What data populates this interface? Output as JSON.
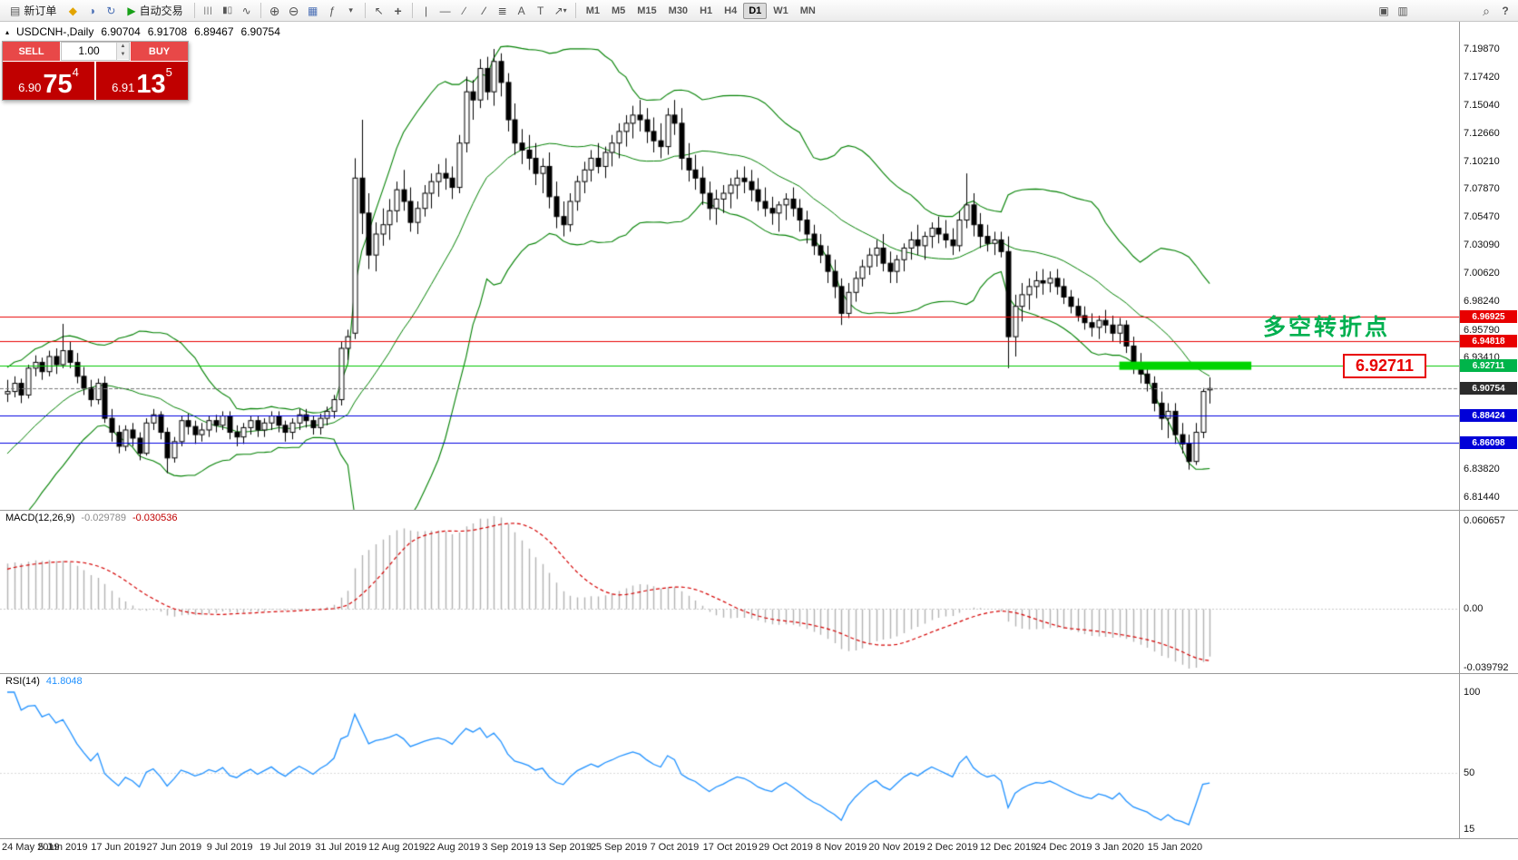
{
  "toolbar": {
    "new_order_label": "新订单",
    "autotrading_label": "自动交易",
    "timeframes": [
      "M1",
      "M5",
      "M15",
      "M30",
      "H1",
      "H4",
      "D1",
      "W1",
      "MN"
    ],
    "active_timeframe": "D1"
  },
  "icons": {
    "new-order-icon": "▤",
    "charts-icon": "◆",
    "profile-icon": "◑",
    "refresh-icon": "↻",
    "autotrade-icon": "▶",
    "bars-icon": "|||",
    "candles-icon": "▮▯",
    "line-chart-icon": "∿",
    "zoom-in-icon": "⊕",
    "zoom-out-icon": "⊖",
    "tile-windows-icon": "▦",
    "indicators-icon": "ƒ",
    "dropdown-icon": "▾",
    "cursor-icon": "↖",
    "crosshair-icon": "+",
    "vline-icon": "|",
    "hline-icon": "—",
    "trendline-icon": "∕",
    "channel-icon": "∕∕",
    "fibo-icon": "≣",
    "text-icon": "A",
    "label-icon": "T",
    "arrow-icon": "↗",
    "templates-icon": "▣",
    "objects-icon": "▥",
    "magnifier-icon": "⌕",
    "help-icon": "?",
    "uptick-icon": "▴",
    "spin-up-icon": "▲",
    "spin-down-icon": "▼"
  },
  "chart": {
    "symbol": "USDCNH-,Daily",
    "open": "6.90704",
    "high": "6.91708",
    "low": "6.89467",
    "close": "6.90754",
    "current_price": 6.90754
  },
  "quote_panel": {
    "sell_label": "SELL",
    "buy_label": "BUY",
    "volume": "1.00",
    "bid_prefix": "6.90",
    "bid_big": "75",
    "bid_sup": "4",
    "ask_prefix": "6.91",
    "ask_big": "13",
    "ask_sup": "5"
  },
  "price_axis": {
    "grid_labels": [
      {
        "text": "7.19870",
        "price": 7.1987
      },
      {
        "text": "7.17420",
        "price": 7.1742
      },
      {
        "text": "7.15040",
        "price": 7.1504
      },
      {
        "text": "7.12660",
        "price": 7.1266
      },
      {
        "text": "7.10210",
        "price": 7.1021
      },
      {
        "text": "7.07870",
        "price": 7.0787
      },
      {
        "text": "7.05470",
        "price": 7.0547
      },
      {
        "text": "7.03090",
        "price": 7.0309
      },
      {
        "text": "7.00620",
        "price": 7.0062
      },
      {
        "text": "6.98240",
        "price": 6.9824
      },
      {
        "text": "6.95790",
        "price": 6.9579
      },
      {
        "text": "6.93410",
        "price": 6.9341
      },
      {
        "text": "6.83820",
        "price": 6.8382
      },
      {
        "text": "6.81440",
        "price": 6.8144
      }
    ],
    "tags": [
      {
        "text": "6.96925",
        "price": 6.96925,
        "bg": "#e80000"
      },
      {
        "text": "6.94818",
        "price": 6.94818,
        "bg": "#e80000"
      },
      {
        "text": "6.92711",
        "price": 6.92711,
        "bg": "#00b44a"
      },
      {
        "text": "6.90754",
        "price": 6.90754,
        "bg": "#2b2b2b"
      },
      {
        "text": "6.88424",
        "price": 6.88424,
        "bg": "#0000d8"
      },
      {
        "text": "6.86098",
        "price": 6.86098,
        "bg": "#0000d8"
      }
    ]
  },
  "hlines": [
    {
      "price": 6.96925,
      "color": "#e80000"
    },
    {
      "price": 6.94818,
      "color": "#e80000"
    },
    {
      "price": 6.92711,
      "color": "#00c800"
    },
    {
      "price": 6.88424,
      "color": "#0000e0"
    },
    {
      "price": 6.86098,
      "color": "#0000e0"
    }
  ],
  "annotations": {
    "turning_point": {
      "text": "多空转折点",
      "price": 6.963,
      "color": "#00b050"
    },
    "price_callout": {
      "text": "6.92711",
      "price": 6.92711,
      "color": "#e80000"
    },
    "support_bar": {
      "price": 6.92711,
      "from_index": 160,
      "to_index": 179,
      "color": "#00d400"
    }
  },
  "macd_pane": {
    "label": "MACD(12,26,9)",
    "value_main": "-0.029789",
    "value_signal": "-0.030536",
    "axis_labels": [
      {
        "text": "0.060657",
        "value": 0.060657
      },
      {
        "text": "0.00",
        "value": 0
      },
      {
        "text": "-0.039792",
        "value": -0.039792
      }
    ]
  },
  "rsi_pane": {
    "label": "RSI(14)",
    "value": "41.8048",
    "axis_labels": [
      {
        "text": "100",
        "value": 100
      },
      {
        "text": "50",
        "value": 50
      },
      {
        "text": "15",
        "value": 15
      }
    ]
  },
  "date_axis": {
    "candles_per_tick": 8,
    "labels": [
      "24 May 2019",
      "5 Jun 2019",
      "17 Jun 2019",
      "27 Jun 2019",
      "9 Jul 2019",
      "19 Jul 2019",
      "31 Jul 2019",
      "12 Aug 2019",
      "22 Aug 2019",
      "3 Sep 2019",
      "13 Sep 2019",
      "25 Sep 2019",
      "7 Oct 2019",
      "17 Oct 2019",
      "29 Oct 2019",
      "8 Nov 2019",
      "20 Nov 2019",
      "2 Dec 2019",
      "12 Dec 2019",
      "24 Dec 2019",
      "3 Jan 2020",
      "15 Jan 2020"
    ]
  },
  "chart_data": {
    "type": "candlestick",
    "symbol": "USDCNH",
    "timeframe": "Daily",
    "bollinger": {
      "period": 20,
      "deviation": 2
    },
    "macd": {
      "fast": 12,
      "slow": 26,
      "signal": 9
    },
    "rsi": {
      "period": 14
    },
    "warmup_closes": [
      6.78,
      6.788,
      6.795,
      6.8,
      6.808,
      6.815,
      6.822,
      6.83,
      6.838,
      6.845,
      6.852,
      6.86,
      6.866,
      6.872,
      6.878,
      6.884,
      6.888,
      6.892,
      6.896,
      6.9
    ],
    "ohlc": [
      [
        6.903,
        6.915,
        6.896,
        6.905
      ],
      [
        6.905,
        6.918,
        6.9,
        6.912
      ],
      [
        6.912,
        6.916,
        6.895,
        6.902
      ],
      [
        6.902,
        6.928,
        6.899,
        6.925
      ],
      [
        6.925,
        6.936,
        6.918,
        6.93
      ],
      [
        6.93,
        6.934,
        6.915,
        6.922
      ],
      [
        6.922,
        6.94,
        6.918,
        6.935
      ],
      [
        6.935,
        6.942,
        6.92,
        6.928
      ],
      [
        6.928,
        6.963,
        6.925,
        6.94
      ],
      [
        6.94,
        6.948,
        6.925,
        6.93
      ],
      [
        6.93,
        6.938,
        6.912,
        6.918
      ],
      [
        6.918,
        6.926,
        6.902,
        6.908
      ],
      [
        6.908,
        6.915,
        6.892,
        6.898
      ],
      [
        6.898,
        6.916,
        6.894,
        6.912
      ],
      [
        6.912,
        6.918,
        6.878,
        6.882
      ],
      [
        6.882,
        6.89,
        6.862,
        6.87
      ],
      [
        6.87,
        6.876,
        6.852,
        6.858
      ],
      [
        6.858,
        6.876,
        6.854,
        6.872
      ],
      [
        6.872,
        6.878,
        6.858,
        6.865
      ],
      [
        6.865,
        6.87,
        6.846,
        6.852
      ],
      [
        6.852,
        6.882,
        6.85,
        6.878
      ],
      [
        6.878,
        6.89,
        6.872,
        6.885
      ],
      [
        6.885,
        6.888,
        6.864,
        6.87
      ],
      [
        6.87,
        6.874,
        6.835,
        6.848
      ],
      [
        6.848,
        6.866,
        6.844,
        6.862
      ],
      [
        6.862,
        6.884,
        6.858,
        6.88
      ],
      [
        6.88,
        6.886,
        6.868,
        6.875
      ],
      [
        6.875,
        6.88,
        6.86,
        6.868
      ],
      [
        6.868,
        6.878,
        6.862,
        6.872
      ],
      [
        6.872,
        6.884,
        6.866,
        6.88
      ],
      [
        6.88,
        6.885,
        6.87,
        6.876
      ],
      [
        6.876,
        6.888,
        6.872,
        6.884
      ],
      [
        6.884,
        6.888,
        6.864,
        6.87
      ],
      [
        6.87,
        6.876,
        6.858,
        6.866
      ],
      [
        6.866,
        6.878,
        6.86,
        6.874
      ],
      [
        6.874,
        6.884,
        6.868,
        6.88
      ],
      [
        6.88,
        6.884,
        6.866,
        6.872
      ],
      [
        6.872,
        6.882,
        6.866,
        6.878
      ],
      [
        6.878,
        6.888,
        6.872,
        6.884
      ],
      [
        6.884,
        6.888,
        6.87,
        6.876
      ],
      [
        6.876,
        6.88,
        6.862,
        6.87
      ],
      [
        6.87,
        6.882,
        6.864,
        6.878
      ],
      [
        6.878,
        6.89,
        6.872,
        6.885
      ],
      [
        6.885,
        6.89,
        6.874,
        6.88
      ],
      [
        6.88,
        6.884,
        6.868,
        6.874
      ],
      [
        6.874,
        6.886,
        6.868,
        6.882
      ],
      [
        6.882,
        6.892,
        6.876,
        6.888
      ],
      [
        6.888,
        6.902,
        6.882,
        6.898
      ],
      [
        6.898,
        6.948,
        6.893,
        6.942
      ],
      [
        6.942,
        6.958,
        6.932,
        6.952
      ],
      [
        6.955,
        7.105,
        6.95,
        7.088
      ],
      [
        7.088,
        7.138,
        7.04,
        7.058
      ],
      [
        7.058,
        7.075,
        7.01,
        7.022
      ],
      [
        7.022,
        7.05,
        7.008,
        7.04
      ],
      [
        7.04,
        7.062,
        7.03,
        7.048
      ],
      [
        7.048,
        7.07,
        7.035,
        7.06
      ],
      [
        7.06,
        7.085,
        7.05,
        7.078
      ],
      [
        7.078,
        7.095,
        7.06,
        7.068
      ],
      [
        7.068,
        7.08,
        7.042,
        7.05
      ],
      [
        7.05,
        7.068,
        7.04,
        7.062
      ],
      [
        7.062,
        7.082,
        7.055,
        7.075
      ],
      [
        7.075,
        7.092,
        7.062,
        7.085
      ],
      [
        7.085,
        7.1,
        7.072,
        7.092
      ],
      [
        7.092,
        7.105,
        7.078,
        7.088
      ],
      [
        7.088,
        7.098,
        7.07,
        7.08
      ],
      [
        7.08,
        7.125,
        7.075,
        7.118
      ],
      [
        7.118,
        7.175,
        7.11,
        7.162
      ],
      [
        7.162,
        7.172,
        7.138,
        7.155
      ],
      [
        7.155,
        7.19,
        7.148,
        7.182
      ],
      [
        7.182,
        7.192,
        7.155,
        7.162
      ],
      [
        7.162,
        7.1987,
        7.15,
        7.188
      ],
      [
        7.188,
        7.195,
        7.158,
        7.17
      ],
      [
        7.17,
        7.178,
        7.128,
        7.138
      ],
      [
        7.138,
        7.152,
        7.108,
        7.118
      ],
      [
        7.118,
        7.13,
        7.1,
        7.112
      ],
      [
        7.112,
        7.125,
        7.095,
        7.105
      ],
      [
        7.105,
        7.118,
        7.082,
        7.092
      ],
      [
        7.092,
        7.105,
        7.075,
        7.098
      ],
      [
        7.098,
        7.11,
        7.062,
        7.072
      ],
      [
        7.072,
        7.085,
        7.045,
        7.055
      ],
      [
        7.055,
        7.068,
        7.038,
        7.048
      ],
      [
        7.048,
        7.075,
        7.042,
        7.068
      ],
      [
        7.068,
        7.09,
        7.06,
        7.085
      ],
      [
        7.085,
        7.102,
        7.075,
        7.095
      ],
      [
        7.095,
        7.112,
        7.085,
        7.105
      ],
      [
        7.105,
        7.118,
        7.092,
        7.098
      ],
      [
        7.098,
        7.115,
        7.088,
        7.11
      ],
      [
        7.11,
        7.125,
        7.098,
        7.118
      ],
      [
        7.118,
        7.135,
        7.105,
        7.128
      ],
      [
        7.128,
        7.142,
        7.115,
        7.135
      ],
      [
        7.135,
        7.15,
        7.122,
        7.142
      ],
      [
        7.142,
        7.155,
        7.128,
        7.138
      ],
      [
        7.138,
        7.148,
        7.118,
        7.128
      ],
      [
        7.128,
        7.14,
        7.11,
        7.12
      ],
      [
        7.12,
        7.135,
        7.105,
        7.115
      ],
      [
        7.115,
        7.148,
        7.108,
        7.142
      ],
      [
        7.142,
        7.155,
        7.125,
        7.135
      ],
      [
        7.135,
        7.148,
        7.095,
        7.105
      ],
      [
        7.105,
        7.118,
        7.085,
        7.095
      ],
      [
        7.095,
        7.108,
        7.078,
        7.088
      ],
      [
        7.088,
        7.098,
        7.065,
        7.075
      ],
      [
        7.075,
        7.085,
        7.052,
        7.062
      ],
      [
        7.062,
        7.078,
        7.048,
        7.07
      ],
      [
        7.07,
        7.082,
        7.058,
        7.075
      ],
      [
        7.075,
        7.088,
        7.062,
        7.082
      ],
      [
        7.082,
        7.095,
        7.07,
        7.088
      ],
      [
        7.088,
        7.098,
        7.075,
        7.085
      ],
      [
        7.085,
        7.095,
        7.068,
        7.078
      ],
      [
        7.078,
        7.088,
        7.06,
        7.068
      ],
      [
        7.068,
        7.08,
        7.055,
        7.062
      ],
      [
        7.062,
        7.072,
        7.048,
        7.058
      ],
      [
        7.058,
        7.068,
        7.042,
        7.065
      ],
      [
        7.065,
        7.075,
        7.052,
        7.07
      ],
      [
        7.07,
        7.08,
        7.055,
        7.062
      ],
      [
        7.062,
        7.07,
        7.042,
        7.052
      ],
      [
        7.052,
        7.06,
        7.032,
        7.04
      ],
      [
        7.04,
        7.048,
        7.022,
        7.03
      ],
      [
        7.03,
        7.04,
        7.015,
        7.022
      ],
      [
        7.022,
        7.03,
        6.998,
        7.008
      ],
      [
        7.008,
        7.018,
        6.985,
        6.995
      ],
      [
        6.995,
        7.002,
        6.962,
        6.972
      ],
      [
        6.972,
        6.998,
        6.968,
        6.99
      ],
      [
        6.99,
        7.008,
        6.982,
        7.002
      ],
      [
        7.002,
        7.018,
        6.995,
        7.012
      ],
      [
        7.012,
        7.028,
        7.005,
        7.022
      ],
      [
        7.022,
        7.035,
        7.012,
        7.028
      ],
      [
        7.028,
        7.04,
        7.008,
        7.015
      ],
      [
        7.015,
        7.025,
        6.998,
        7.008
      ],
      [
        7.008,
        7.022,
        6.998,
        7.018
      ],
      [
        7.018,
        7.032,
        7.008,
        7.028
      ],
      [
        7.028,
        7.042,
        7.018,
        7.035
      ],
      [
        7.035,
        7.048,
        7.022,
        7.03
      ],
      [
        7.03,
        7.042,
        7.018,
        7.038
      ],
      [
        7.038,
        7.05,
        7.028,
        7.045
      ],
      [
        7.045,
        7.055,
        7.032,
        7.04
      ],
      [
        7.04,
        7.052,
        7.028,
        7.035
      ],
      [
        7.035,
        7.045,
        7.022,
        7.03
      ],
      [
        7.03,
        7.06,
        7.025,
        7.052
      ],
      [
        7.052,
        7.092,
        7.045,
        7.065
      ],
      [
        7.065,
        7.075,
        7.038,
        7.048
      ],
      [
        7.048,
        7.058,
        7.028,
        7.038
      ],
      [
        7.038,
        7.048,
        7.025,
        7.032
      ],
      [
        7.032,
        7.042,
        7.022,
        7.035
      ],
      [
        7.035,
        7.042,
        7.02,
        7.025
      ],
      [
        7.025,
        7.038,
        6.925,
        6.952
      ],
      [
        6.952,
        6.988,
        6.935,
        6.978
      ],
      [
        6.978,
        6.998,
        6.965,
        6.988
      ],
      [
        6.988,
        7.002,
        6.975,
        6.995
      ],
      [
        6.995,
        7.008,
        6.985,
        7.0
      ],
      [
        7.0,
        7.01,
        6.988,
        6.998
      ],
      [
        6.998,
        7.008,
        6.99,
        7.002
      ],
      [
        7.002,
        7.01,
        6.988,
        6.995
      ],
      [
        6.995,
        7.002,
        6.98,
        6.986
      ],
      [
        6.986,
        6.992,
        6.972,
        6.978
      ],
      [
        6.978,
        6.985,
        6.965,
        6.97
      ],
      [
        6.97,
        6.978,
        6.958,
        6.964
      ],
      [
        6.964,
        6.972,
        6.952,
        6.96
      ],
      [
        6.96,
        6.97,
        6.95,
        6.966
      ],
      [
        6.966,
        6.975,
        6.955,
        6.962
      ],
      [
        6.962,
        6.97,
        6.948,
        6.955
      ],
      [
        6.955,
        6.968,
        6.946,
        6.962
      ],
      [
        6.962,
        6.966,
        6.938,
        6.944
      ],
      [
        6.944,
        6.952,
        6.92,
        6.928
      ],
      [
        6.928,
        6.938,
        6.912,
        6.92
      ],
      [
        6.92,
        6.93,
        6.905,
        6.912
      ],
      [
        6.912,
        6.918,
        6.888,
        6.895
      ],
      [
        6.895,
        6.905,
        6.872,
        6.882
      ],
      [
        6.882,
        6.895,
        6.865,
        6.888
      ],
      [
        6.888,
        6.895,
        6.86,
        6.868
      ],
      [
        6.868,
        6.878,
        6.852,
        6.86
      ],
      [
        6.86,
        6.868,
        6.838,
        6.845
      ],
      [
        6.845,
        6.878,
        6.842,
        6.87
      ],
      [
        6.87,
        6.908,
        6.865,
        6.905
      ],
      [
        6.90704,
        6.91708,
        6.89467,
        6.90754
      ]
    ]
  }
}
